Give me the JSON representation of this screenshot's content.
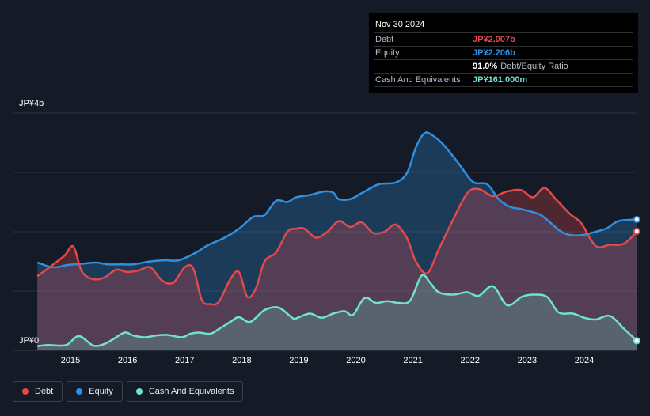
{
  "tooltip": {
    "date": "Nov 30 2024",
    "rows": {
      "debt": {
        "label": "Debt",
        "value": "JP¥2.007b"
      },
      "equity": {
        "label": "Equity",
        "value": "JP¥2.206b"
      },
      "ratio": {
        "label": "",
        "value": "91.0%",
        "suffix": "Debt/Equity Ratio"
      },
      "cash": {
        "label": "Cash And Equivalents",
        "value": "JP¥161.000m"
      }
    }
  },
  "legend": [
    {
      "name": "Debt",
      "color": "#e5484d"
    },
    {
      "name": "Equity",
      "color": "#2f8fe0"
    },
    {
      "name": "Cash And Equivalents",
      "color": "#6fe3cf"
    }
  ],
  "colors": {
    "debt": "#e5484d",
    "equity": "#2f8fe0",
    "cash": "#6fe3cf",
    "background": "#151b26"
  },
  "chart_data": {
    "type": "area",
    "y_tick_labels": {
      "top": "JP¥4b",
      "bottom": "JP¥0"
    },
    "ylim": [
      0,
      4.0
    ],
    "y_unit": "JP¥ billions",
    "xlim": [
      2014.4,
      2024.92
    ],
    "x_tick_labels": [
      "2015",
      "2016",
      "2017",
      "2018",
      "2019",
      "2020",
      "2021",
      "2022",
      "2023",
      "2024"
    ],
    "grid": true,
    "legend_position": "bottom-left",
    "series": [
      {
        "name": "Debt",
        "x": [
          2014.42,
          2014.7,
          2014.9,
          2015.05,
          2015.2,
          2015.4,
          2015.6,
          2015.8,
          2016.0,
          2016.2,
          2016.4,
          2016.6,
          2016.8,
          2017.0,
          2017.15,
          2017.3,
          2017.45,
          2017.6,
          2017.8,
          2017.95,
          2018.1,
          2018.25,
          2018.4,
          2018.6,
          2018.8,
          2018.95,
          2019.1,
          2019.3,
          2019.5,
          2019.7,
          2019.9,
          2020.1,
          2020.3,
          2020.5,
          2020.7,
          2020.9,
          2021.05,
          2021.25,
          2021.45,
          2021.7,
          2021.95,
          2022.15,
          2022.4,
          2022.65,
          2022.9,
          2023.1,
          2023.3,
          2023.5,
          2023.75,
          2023.95,
          2024.2,
          2024.45,
          2024.7,
          2024.92
        ],
        "values": [
          1.25,
          1.45,
          1.6,
          1.75,
          1.33,
          1.2,
          1.23,
          1.36,
          1.32,
          1.35,
          1.4,
          1.18,
          1.14,
          1.4,
          1.38,
          0.85,
          0.78,
          0.82,
          1.2,
          1.32,
          0.9,
          1.05,
          1.5,
          1.65,
          2.0,
          2.05,
          2.05,
          1.9,
          2.0,
          2.18,
          2.08,
          2.16,
          1.98,
          2.0,
          2.12,
          1.88,
          1.5,
          1.3,
          1.7,
          2.2,
          2.65,
          2.72,
          2.6,
          2.68,
          2.7,
          2.58,
          2.74,
          2.55,
          2.3,
          2.14,
          1.76,
          1.78,
          1.8,
          2.007
        ]
      },
      {
        "name": "Equity",
        "x": [
          2014.42,
          2014.7,
          2014.95,
          2015.2,
          2015.45,
          2015.65,
          2015.9,
          2016.1,
          2016.4,
          2016.65,
          2016.9,
          2017.2,
          2017.4,
          2017.7,
          2017.95,
          2018.2,
          2018.4,
          2018.6,
          2018.8,
          2018.95,
          2019.2,
          2019.45,
          2019.6,
          2019.7,
          2019.9,
          2020.1,
          2020.4,
          2020.7,
          2020.9,
          2021.05,
          2021.2,
          2021.35,
          2021.55,
          2021.8,
          2022.05,
          2022.3,
          2022.5,
          2022.7,
          2022.9,
          2023.2,
          2023.35,
          2023.6,
          2023.8,
          2024.0,
          2024.2,
          2024.4,
          2024.6,
          2024.92
        ],
        "values": [
          1.48,
          1.4,
          1.44,
          1.46,
          1.48,
          1.45,
          1.45,
          1.45,
          1.5,
          1.52,
          1.52,
          1.65,
          1.77,
          1.9,
          2.05,
          2.25,
          2.28,
          2.52,
          2.5,
          2.58,
          2.62,
          2.68,
          2.66,
          2.55,
          2.55,
          2.65,
          2.8,
          2.83,
          3.0,
          3.42,
          3.66,
          3.62,
          3.45,
          3.15,
          2.84,
          2.8,
          2.55,
          2.42,
          2.38,
          2.3,
          2.2,
          2.0,
          1.94,
          1.95,
          2.0,
          2.06,
          2.18,
          2.206
        ]
      },
      {
        "name": "Cash And Equivalents",
        "x": [
          2014.42,
          2014.6,
          2014.8,
          2014.95,
          2015.15,
          2015.4,
          2015.6,
          2015.75,
          2015.95,
          2016.1,
          2016.3,
          2016.5,
          2016.7,
          2016.95,
          2017.1,
          2017.25,
          2017.45,
          2017.6,
          2017.8,
          2017.95,
          2018.15,
          2018.4,
          2018.65,
          2018.9,
          2019.0,
          2019.2,
          2019.4,
          2019.6,
          2019.8,
          2019.95,
          2020.15,
          2020.35,
          2020.55,
          2020.75,
          2020.95,
          2021.15,
          2021.3,
          2021.45,
          2021.7,
          2021.95,
          2022.15,
          2022.4,
          2022.65,
          2022.9,
          2023.1,
          2023.35,
          2023.55,
          2023.8,
          2024.0,
          2024.2,
          2024.45,
          2024.7,
          2024.92
        ],
        "values": [
          0.07,
          0.09,
          0.08,
          0.1,
          0.24,
          0.08,
          0.11,
          0.19,
          0.3,
          0.25,
          0.22,
          0.25,
          0.26,
          0.22,
          0.28,
          0.3,
          0.28,
          0.36,
          0.48,
          0.56,
          0.48,
          0.68,
          0.72,
          0.54,
          0.56,
          0.62,
          0.55,
          0.62,
          0.66,
          0.6,
          0.88,
          0.8,
          0.83,
          0.8,
          0.84,
          1.26,
          1.14,
          0.98,
          0.94,
          0.98,
          0.92,
          1.08,
          0.76,
          0.9,
          0.94,
          0.9,
          0.64,
          0.62,
          0.55,
          0.52,
          0.58,
          0.36,
          0.161
        ]
      }
    ]
  }
}
